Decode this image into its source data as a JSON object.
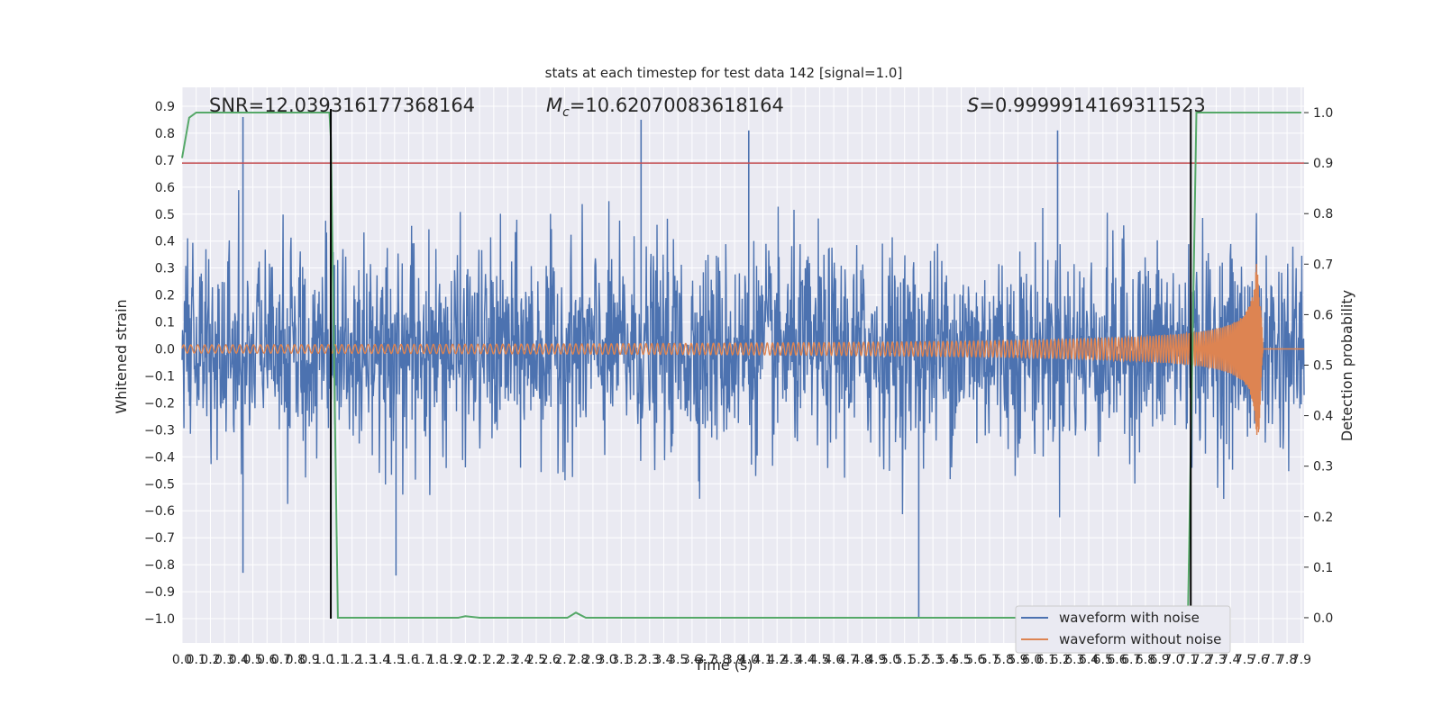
{
  "chart_data": {
    "type": "line",
    "title": "stats at each timestep for test data 142 [signal=1.0]",
    "xlabel": "Time (s)",
    "ylabel": "Whitened strain",
    "y2label": "Detection probability",
    "xlim": [
      0.0,
      7.92
    ],
    "ylim": [
      -1.09,
      0.97
    ],
    "y2lim": [
      -0.05,
      1.05
    ],
    "x_ticks": [
      0.0,
      0.1,
      0.2,
      0.3,
      0.4,
      0.5,
      0.6,
      0.7,
      0.8,
      0.9,
      1.0,
      1.1,
      1.2,
      1.3,
      1.4,
      1.5,
      1.6,
      1.7,
      1.8,
      1.9,
      2.0,
      2.1,
      2.2,
      2.3,
      2.4,
      2.5,
      2.6,
      2.7,
      2.8,
      2.9,
      3.0,
      3.1,
      3.2,
      3.3,
      3.4,
      3.5,
      3.6,
      3.7,
      3.8,
      3.9,
      4.0,
      4.1,
      4.2,
      4.3,
      4.4,
      4.5,
      4.6,
      4.7,
      4.8,
      4.9,
      5.0,
      5.1,
      5.2,
      5.3,
      5.4,
      5.5,
      5.6,
      5.7,
      5.8,
      5.9,
      6.0,
      6.1,
      6.2,
      6.3,
      6.4,
      6.5,
      6.6,
      6.7,
      6.8,
      6.9,
      7.0,
      7.1,
      7.2,
      7.3,
      7.4,
      7.5,
      7.6,
      7.7,
      7.8,
      7.9
    ],
    "y_ticks": [
      -1.0,
      -0.9,
      -0.8,
      -0.7,
      -0.6,
      -0.5,
      -0.4,
      -0.3,
      -0.2,
      -0.1,
      0.0,
      0.1,
      0.2,
      0.3,
      0.4,
      0.5,
      0.6,
      0.7,
      0.8,
      0.9
    ],
    "y2_ticks": [
      0.0,
      0.1,
      0.2,
      0.3,
      0.4,
      0.5,
      0.6,
      0.7,
      0.8,
      0.9,
      1.0
    ],
    "grid": true,
    "legend_position": "bottom-right",
    "annotations": {
      "snr": "SNR=12.039316177368164",
      "mc_symbol": "M",
      "mc_sub": "c",
      "mc_value": "=10.62070083618164",
      "s_symbol": "S",
      "s_value": "=0.9999914169311523"
    },
    "series": [
      {
        "name": "waveform with noise",
        "color": "#4c72b0",
        "noise_envelope": 0.48,
        "notable_spikes": [
          [
            0.43,
            0.86
          ],
          [
            0.43,
            -0.83
          ],
          [
            1.51,
            -0.84
          ],
          [
            3.24,
            0.85
          ],
          [
            4.0,
            0.81
          ],
          [
            5.2,
            -1.0
          ],
          [
            6.18,
            0.81
          ]
        ]
      },
      {
        "name": "waveform without noise",
        "color": "#dd8452",
        "amplitude_start": 0.015,
        "amplitude_peak": 0.32,
        "peak_time": 7.6,
        "end_time": 7.63,
        "frequency_start": 20,
        "frequency_end": 90
      },
      {
        "name": "detection probability",
        "axis": "right",
        "color": "#55a868",
        "points": [
          [
            0.0,
            0.91
          ],
          [
            0.05,
            0.99
          ],
          [
            0.1,
            1.0
          ],
          [
            1.04,
            1.0
          ],
          [
            1.05,
            0.95
          ],
          [
            1.1,
            0.0
          ],
          [
            1.95,
            0.0
          ],
          [
            2.0,
            0.003
          ],
          [
            2.1,
            0.0
          ],
          [
            2.72,
            0.0
          ],
          [
            2.78,
            0.01
          ],
          [
            2.85,
            0.0
          ],
          [
            7.1,
            0.0
          ],
          [
            7.13,
            0.5
          ],
          [
            7.16,
            1.0
          ],
          [
            7.9,
            1.0
          ]
        ]
      }
    ],
    "threshold": {
      "value": 0.9,
      "axis": "right",
      "color": "#c44e52"
    },
    "markers": [
      {
        "x": 1.05,
        "color": "#000000"
      },
      {
        "x": 7.12,
        "color": "#000000"
      }
    ]
  }
}
